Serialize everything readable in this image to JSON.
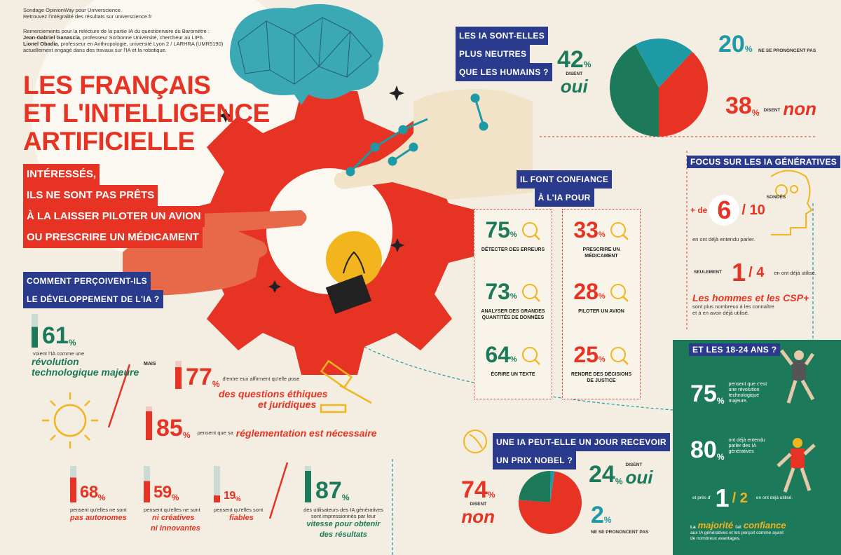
{
  "header": {
    "source_line1": "Sondage OpinionWay pour Universcience.",
    "source_line2": "Retrouvez l'intégralité des résultats sur universcience.fr",
    "thanks_line": "Remerciements pour la relecture de la partie IA du questionnaire du Baromètre :",
    "person1_name": "Jean-Gabriel Ganascia",
    "person1_desc": ", professeur Sorbonne Université, chercheur au LIP6.",
    "person2_name": "Lionel Obadia",
    "person2_desc": ", professeur en Anthropologie, université Lyon 2 / LARHRA (UMR5190)",
    "person2_line2": "actuellement engagé dans des travaux sur l'IA et la robotique."
  },
  "title": {
    "line1": "LES FRANÇAIS",
    "line2": "ET L'INTELLIGENCE",
    "line3": "ARTIFICIELLE",
    "sub1": "INTÉRESSÉS,",
    "sub2": "ILS NE SONT PAS PRÊTS",
    "sub3": "À LA LAISSER PILOTER UN AVION",
    "sub4": "OU PRESCRIRE UN MÉDICAMENT"
  },
  "perception": {
    "question1": "COMMENT PERÇOIVENT-ILS",
    "question2": "LE DÉVELOPPEMENT DE L'IA ?",
    "stat61": "61",
    "stat61_text": "voient l'IA comme une",
    "stat61_em1": "révolution",
    "stat61_em2": "technologique majeure",
    "mais": "MAIS",
    "stat77": "77",
    "stat77_text": "d'entre eux affirment qu'elle pose",
    "stat77_em1": "des questions éthiques",
    "stat77_em2": "et juridiques",
    "stat85": "85",
    "stat85_text": "pensent que sa",
    "stat85_em": "réglementation est nécessaire",
    "stat68": "68",
    "stat68_text": "pensent qu'elles ne sont",
    "stat68_em": "pas autonomes",
    "stat59": "59",
    "stat59_text": "pensent qu'elles ne sont",
    "stat59_em1": "ni créatives",
    "stat59_em2": "ni innovantes",
    "stat19": "19",
    "stat19_text": "pensent qu'elles sont",
    "stat19_em": "fiables",
    "stat87": "87",
    "stat87_text1": "des utilisateurs des IA génératives",
    "stat87_text2": "sont impressionnés par leur",
    "stat87_em1": "vitesse pour obtenir",
    "stat87_em2": "des résultats",
    "pct": "%"
  },
  "neutral": {
    "q1": "LES IA SONT-ELLES",
    "q2": "PLUS NEUTRES",
    "q3": "QUE LES HUMAINS ?",
    "yes_pct": "42",
    "yes_label": "DISENT",
    "yes_word": "oui",
    "none_pct": "20",
    "none_label": "NE SE PRONONCENT PAS",
    "no_pct": "38",
    "no_label": "DISENT",
    "no_word": "non"
  },
  "trust": {
    "t1": "IL FONT CONFIANCE",
    "t2": "À L'IA POUR",
    "items": [
      {
        "pct": "75",
        "label": "DÉTECTER DES ERREURS"
      },
      {
        "pct": "73",
        "label": "ANALYSER DES GRANDES QUANTITÉS DE DONNÉES"
      },
      {
        "pct": "64",
        "label": "ÉCRIRE UN TEXTE"
      },
      {
        "pct": "33",
        "label": "PRESCRIRE UN MÉDICAMENT"
      },
      {
        "pct": "28",
        "label": "PILOTER UN AVION"
      },
      {
        "pct": "25",
        "label": "RENDRE DES DÉCISIONS DE JUSTICE"
      }
    ]
  },
  "generative": {
    "title": "FOCUS  SUR LES IA GÉNÉRATIVES",
    "plus_de": "+ de",
    "six": "6",
    "ten": "/ 10",
    "sondes": "SONDÉS",
    "heard": "en ont déjà entendu parler.",
    "seulement": "SEULEMENT",
    "one": "1",
    "four": "/ 4",
    "used": "en ont déjà utilisé.",
    "men": "Les hommes et les CSP+",
    "men_text1": "sont plus nombreux à les connaître",
    "men_text2": "et à en avoir déjà utilisé."
  },
  "nobel": {
    "q1": "UNE IA PEUT-ELLE UN JOUR RECEVOIR",
    "q2": "UN PRIX NOBEL ?",
    "no_pct": "74",
    "no_label": "DISENT",
    "no_word": "non",
    "yes_pct": "24",
    "yes_label": "DISENT",
    "yes_word": "oui",
    "none_pct": "2",
    "none_label": "NE SE PRONONCENT PAS"
  },
  "youth": {
    "title": "ET LES 18-24 ANS ?",
    "s75": "75",
    "s75_text": "pensent que c'est une révolution technologique majeure.",
    "s80": "80",
    "s80_text": "ont déjà entendu parler des IA génératives",
    "pres": "et près d'",
    "one": "1",
    "two": "/ 2",
    "used": "en ont déjà utilisé.",
    "la": "La",
    "majorite": "majorité",
    "fait": "fait",
    "confiance": "confiance",
    "end1": "aux IA génératives et les perçoit comme ayant",
    "end2": "de nombreux avantages."
  },
  "colors": {
    "red": "#e63323",
    "green": "#1c7a5b",
    "teal": "#1e9aa6",
    "navy": "#2a3a8c",
    "yellow": "#f2b51d",
    "cream": "#f3ede2"
  },
  "chart_data": [
    {
      "type": "pie",
      "title": "LES IA SONT-ELLES PLUS NEUTRES QUE LES HUMAINS ?",
      "categories": [
        "oui",
        "ne se prononcent pas",
        "non"
      ],
      "values": [
        42,
        20,
        38
      ],
      "colors": [
        "#1c7a5b",
        "#1e9aa6",
        "#e63323"
      ]
    },
    {
      "type": "pie",
      "title": "UNE IA PEUT-ELLE UN JOUR RECEVOIR UN PRIX NOBEL ?",
      "categories": [
        "non",
        "oui",
        "ne se prononcent pas"
      ],
      "values": [
        74,
        24,
        2
      ],
      "colors": [
        "#e63323",
        "#1c7a5b",
        "#1e9aa6"
      ]
    }
  ]
}
